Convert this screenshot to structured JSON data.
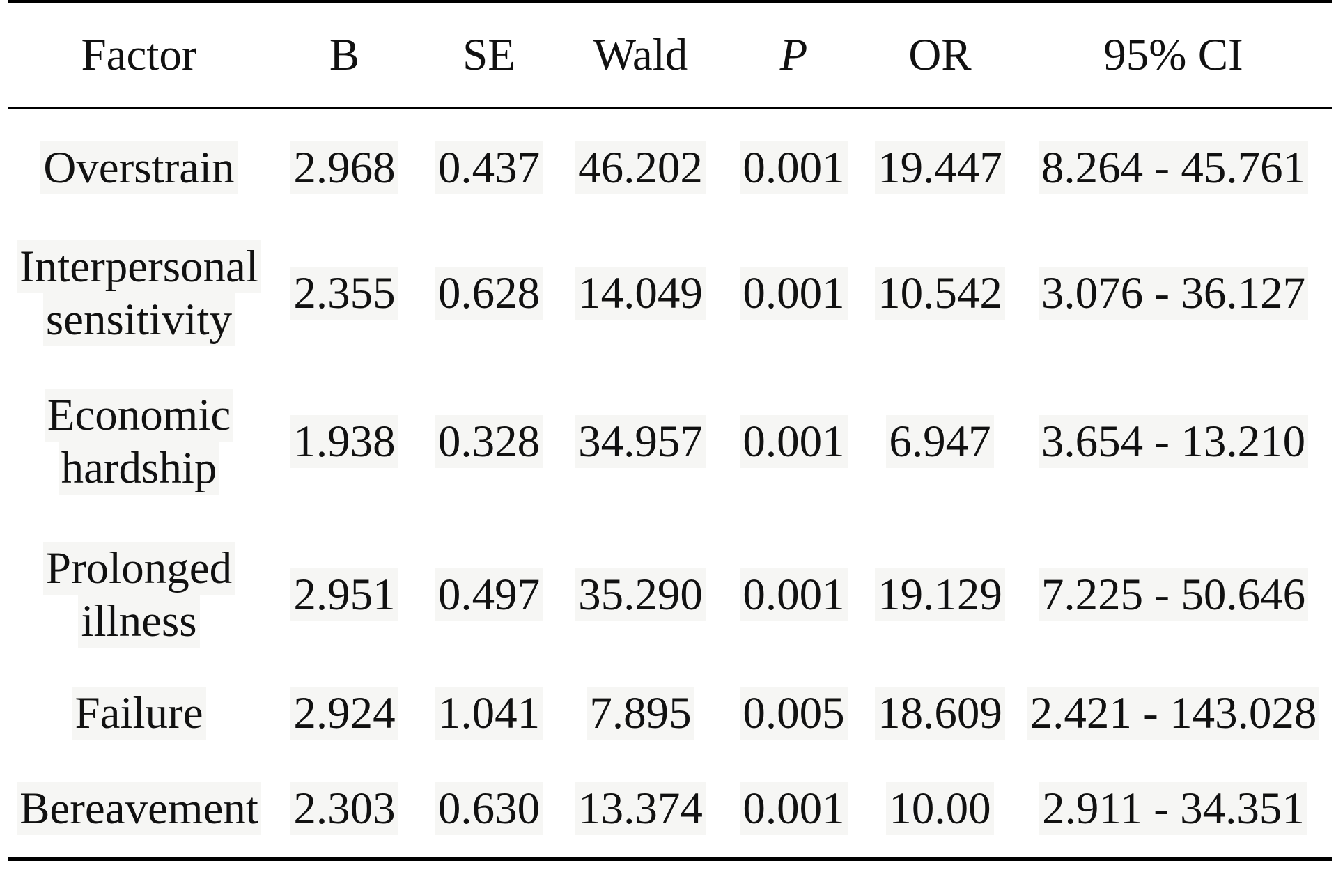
{
  "table": {
    "headers": {
      "factor": "Factor",
      "b": "B",
      "se": "SE",
      "wald": "Wald",
      "p": "P",
      "or": "OR",
      "ci": "95% CI"
    },
    "rows": [
      {
        "factor_line1": "Overstrain",
        "factor_line2": "",
        "b": "2.968",
        "se": "0.437",
        "wald": "46.202",
        "p": "0.001",
        "or": "19.447",
        "ci": "8.264 - 45.761"
      },
      {
        "factor_line1": "Interpersonal",
        "factor_line2": "sensitivity",
        "b": "2.355",
        "se": "0.628",
        "wald": "14.049",
        "p": "0.001",
        "or": "10.542",
        "ci": "3.076 - 36.127"
      },
      {
        "factor_line1": "Economic",
        "factor_line2": "hardship",
        "b": "1.938",
        "se": "0.328",
        "wald": "34.957",
        "p": "0.001",
        "or": "6.947",
        "ci": "3.654 - 13.210"
      },
      {
        "factor_line1": "Prolonged",
        "factor_line2": "illness",
        "b": "2.951",
        "se": "0.497",
        "wald": "35.290",
        "p": "0.001",
        "or": "19.129",
        "ci": "7.225 - 50.646"
      },
      {
        "factor_line1": "Failure",
        "factor_line2": "",
        "b": "2.924",
        "se": "1.041",
        "wald": "7.895",
        "p": "0.005",
        "or": "18.609",
        "ci": "2.421 - 143.028"
      },
      {
        "factor_line1": "Bereavement",
        "factor_line2": "",
        "b": "2.303",
        "se": "0.630",
        "wald": "13.374",
        "p": "0.001",
        "or": "10.00",
        "ci": "2.911 - 34.351"
      }
    ]
  }
}
